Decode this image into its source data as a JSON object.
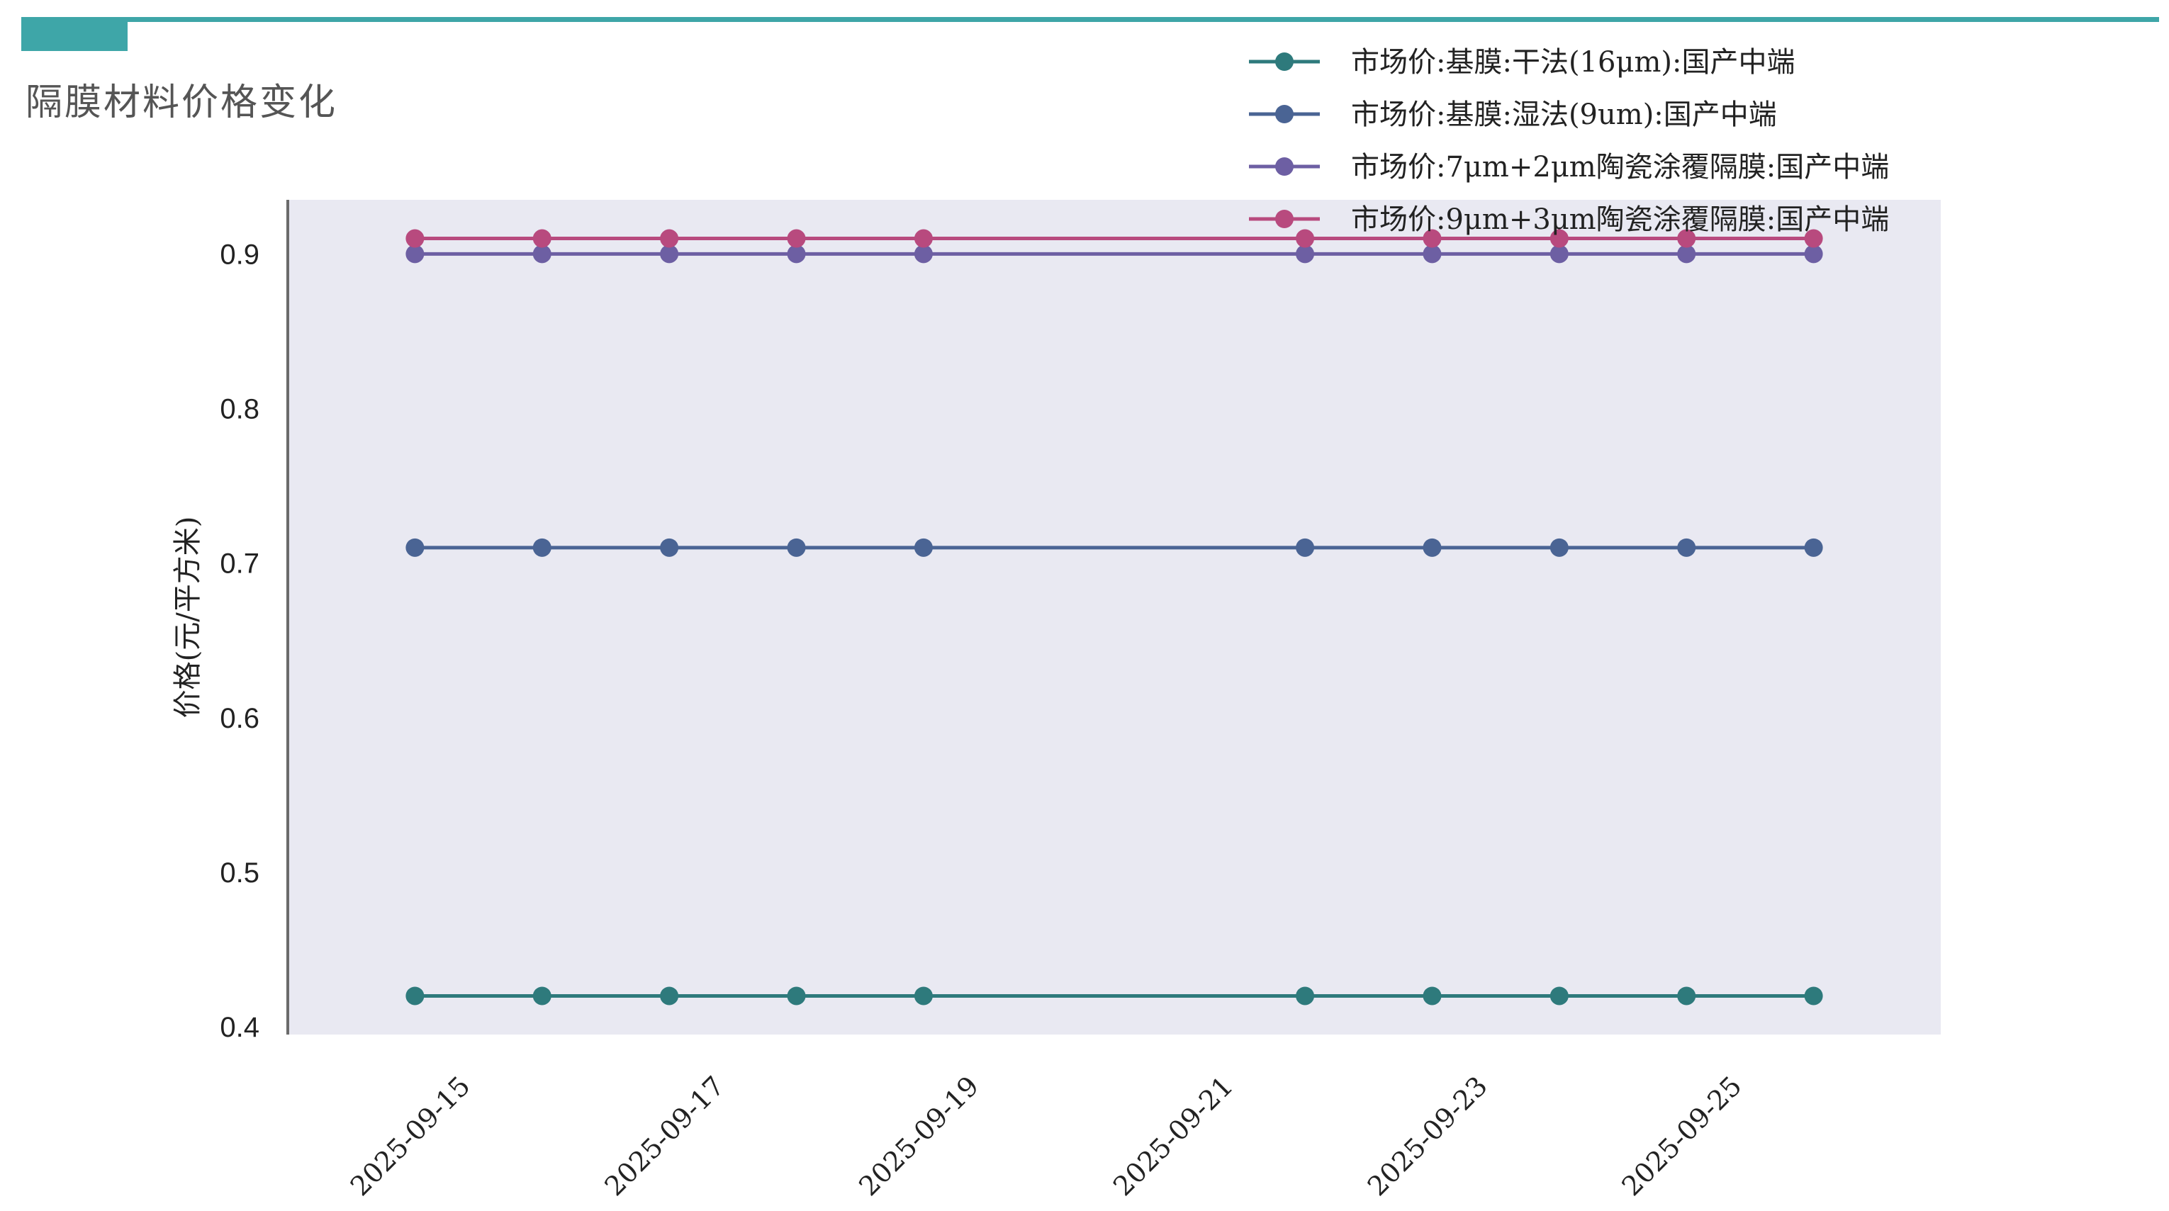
{
  "page": {
    "title": "隔膜材料价格变化",
    "accent_color": "#3ea6a8"
  },
  "chart_data": {
    "type": "line",
    "title": "隔膜材料价格变化",
    "xlabel": "",
    "ylabel": "价格(元/平方米)",
    "x": [
      "2025-09-15",
      "2025-09-16",
      "2025-09-17",
      "2025-09-18",
      "2025-09-19",
      "2025-09-22",
      "2025-09-23",
      "2025-09-24",
      "2025-09-25",
      "2025-09-26"
    ],
    "x_ticks": [
      "2025-09-15",
      "2025-09-17",
      "2025-09-19",
      "2025-09-21",
      "2025-09-23",
      "2025-09-25"
    ],
    "x_range": [
      "2025-09-14",
      "2025-09-27"
    ],
    "y_ticks": [
      0.4,
      0.5,
      0.6,
      0.7,
      0.8,
      0.9
    ],
    "ylim": [
      0.395,
      0.935
    ],
    "grid": false,
    "legend_position": "top-right",
    "plot_background": "#e9e9f2",
    "series": [
      {
        "name": "市场价:基膜:干法(16μm):国产中端",
        "color": "#2e7a7c",
        "values": [
          0.42,
          0.42,
          0.42,
          0.42,
          0.42,
          0.42,
          0.42,
          0.42,
          0.42,
          0.42
        ]
      },
      {
        "name": "市场价:基膜:湿法(9um):国产中端",
        "color": "#4a6494",
        "values": [
          0.71,
          0.71,
          0.71,
          0.71,
          0.71,
          0.71,
          0.71,
          0.71,
          0.71,
          0.71
        ]
      },
      {
        "name": "市场价:7μm+2μm陶瓷涂覆隔膜:国产中端",
        "color": "#6d5fa3",
        "values": [
          0.9,
          0.9,
          0.9,
          0.9,
          0.9,
          0.9,
          0.9,
          0.9,
          0.9,
          0.9
        ]
      },
      {
        "name": "市场价:9μm+3μm陶瓷涂覆隔膜:国产中端",
        "color": "#b84a7e",
        "values": [
          0.91,
          0.91,
          0.91,
          0.91,
          0.91,
          0.91,
          0.91,
          0.91,
          0.91,
          0.91
        ]
      }
    ]
  }
}
